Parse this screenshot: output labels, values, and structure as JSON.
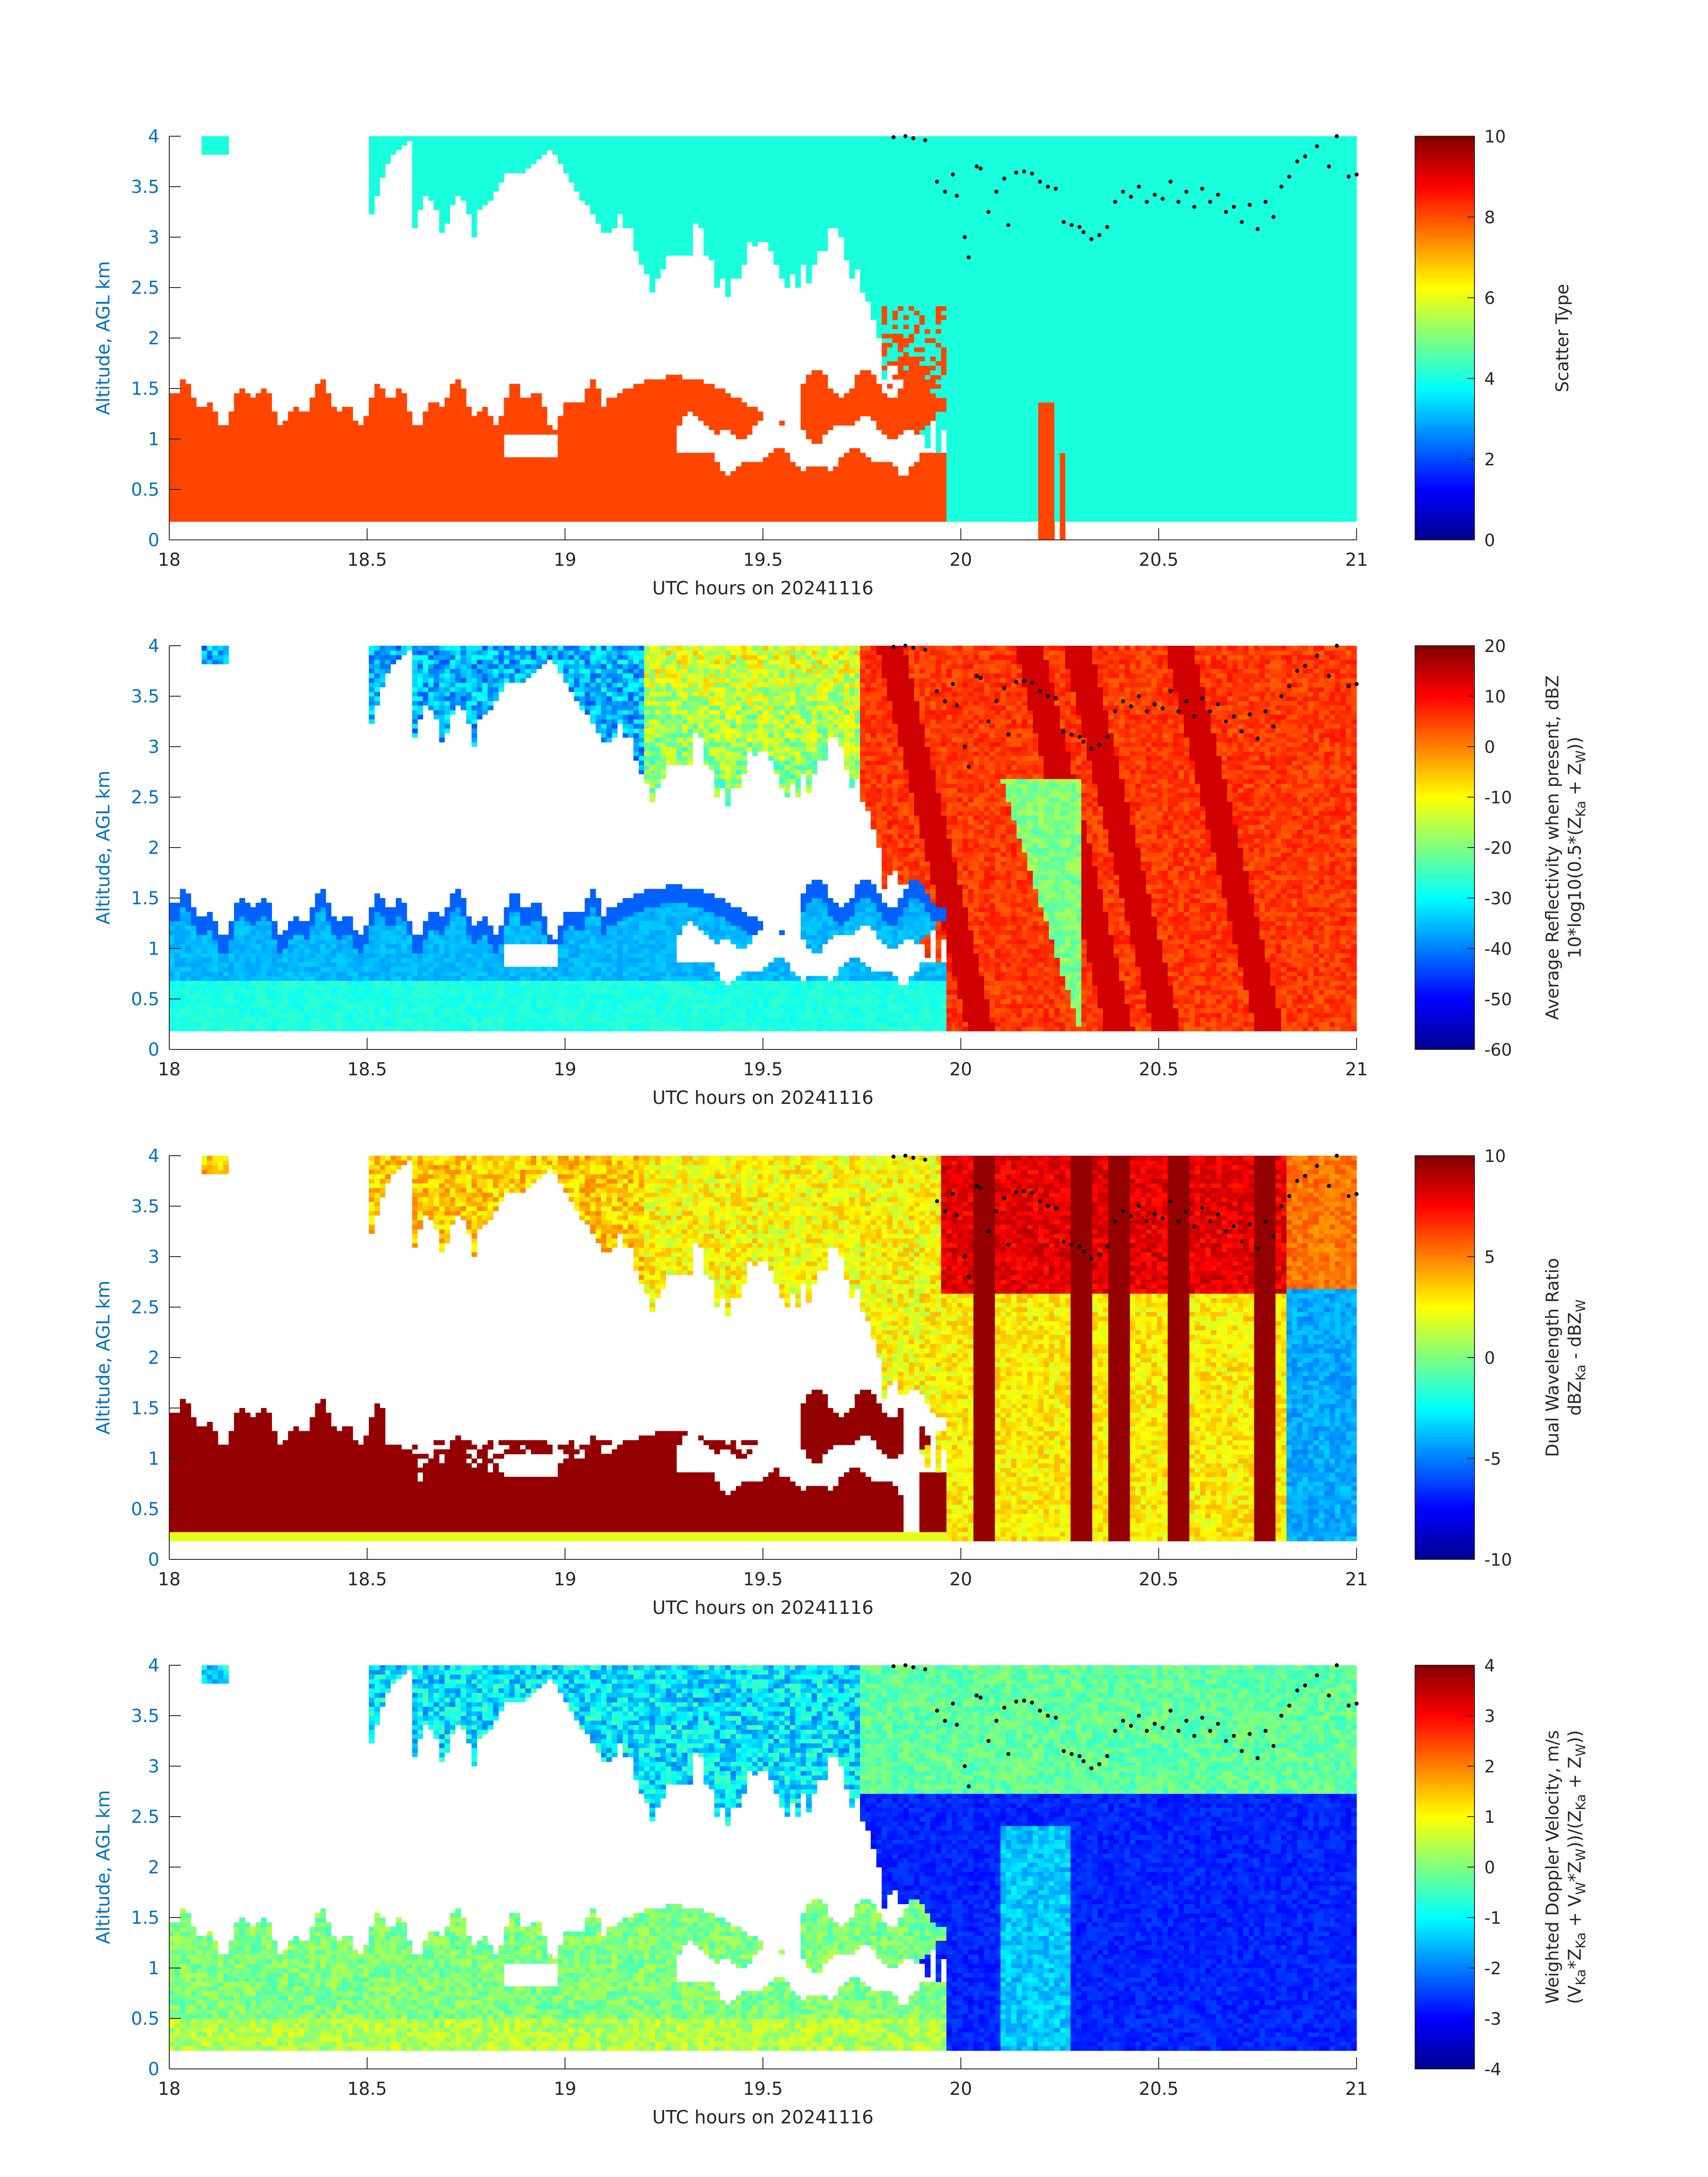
{
  "colors": {
    "axis_label": "#0072BD",
    "text": "#262626",
    "axis_line": "#262626",
    "scatter_cloud": "#19FFDD",
    "scatter_precip": "#FF4500",
    "precip_top_marker": "#000000"
  },
  "colormap": "jet",
  "chart_data": [
    {
      "type": "heatmap",
      "panel": "Scatter Type",
      "ylabel": "Altitude, AGL km",
      "xlabel": "UTC hours on 20241116",
      "xlim": [
        18,
        21
      ],
      "ylim": [
        0,
        4
      ],
      "x_ticks": [
        "18",
        "18.5",
        "19",
        "19.5",
        "20",
        "20.5",
        "21"
      ],
      "y_ticks": [
        "0",
        "0.5",
        "1",
        "1.5",
        "2",
        "2.5",
        "3",
        "3.5",
        "4"
      ],
      "colorbar": {
        "label_lines": [
          "Scatter Type"
        ],
        "ticks": [
          "0",
          "2",
          "4",
          "6",
          "8",
          "10"
        ],
        "range": [
          0,
          10
        ]
      },
      "grid": false
    },
    {
      "type": "heatmap",
      "panel": "Average Reflectivity",
      "ylabel": "Altitude, AGL km",
      "xlabel": "UTC hours on 20241116",
      "xlim": [
        18,
        21
      ],
      "ylim": [
        0,
        4
      ],
      "x_ticks": [
        "18",
        "18.5",
        "19",
        "19.5",
        "20",
        "20.5",
        "21"
      ],
      "y_ticks": [
        "0",
        "0.5",
        "1",
        "1.5",
        "2",
        "2.5",
        "3",
        "3.5",
        "4"
      ],
      "colorbar": {
        "label_lines": [
          "Average Reflectivity when present, dBZ",
          "10*log10(0.5*(Z",
          "Ka",
          " + Z",
          "W",
          "))"
        ],
        "ticks": [
          "-60",
          "-50",
          "-40",
          "-30",
          "-20",
          "-10",
          "0",
          "10",
          "20"
        ],
        "range": [
          -60,
          20
        ]
      },
      "grid": false
    },
    {
      "type": "heatmap",
      "panel": "Dual Wavelength Ratio",
      "ylabel": "Altitude, AGL km",
      "xlabel": "UTC hours on 20241116",
      "xlim": [
        18,
        21
      ],
      "ylim": [
        0,
        4
      ],
      "x_ticks": [
        "18",
        "18.5",
        "19",
        "19.5",
        "20",
        "20.5",
        "21"
      ],
      "y_ticks": [
        "0",
        "0.5",
        "1",
        "1.5",
        "2",
        "2.5",
        "3",
        "3.5",
        "4"
      ],
      "colorbar": {
        "label_lines": [
          "Dual Wavelength Ratio",
          "dBZ",
          "Ka",
          " - dBZ",
          "W"
        ],
        "ticks": [
          "-10",
          "-5",
          "0",
          "5",
          "10"
        ],
        "range": [
          -10,
          10
        ]
      },
      "grid": false
    },
    {
      "type": "heatmap",
      "panel": "Weighted Doppler Velocity",
      "ylabel": "Altitude, AGL km",
      "xlabel": "UTC hours on 20241116",
      "xlim": [
        18,
        21
      ],
      "ylim": [
        0,
        4
      ],
      "x_ticks": [
        "18",
        "18.5",
        "19",
        "19.5",
        "20",
        "20.5",
        "21"
      ],
      "y_ticks": [
        "0",
        "0.5",
        "1",
        "1.5",
        "2",
        "2.5",
        "3",
        "3.5",
        "4"
      ],
      "colorbar": {
        "label_lines": [
          "Weighted Doppler Velocity, m/s",
          "(V",
          "Ka",
          "*Z",
          "Ka",
          " + V",
          "W",
          "*Z",
          "W",
          "))/(Z",
          "Ka",
          " + Z",
          "W",
          "))"
        ],
        "ticks": [
          "-4",
          "-3",
          "-2",
          "-1",
          "0",
          "1",
          "2",
          "3",
          "4"
        ],
        "range": [
          -4,
          4
        ]
      },
      "grid": false
    }
  ],
  "precip_top_markers": {
    "x": [
      19.83,
      19.86,
      19.88,
      19.91,
      19.94,
      19.96,
      19.98,
      19.99,
      20.01,
      20.02,
      20.04,
      20.05,
      20.07,
      20.09,
      20.11,
      20.12,
      20.14,
      20.16,
      20.18,
      20.2,
      20.22,
      20.24,
      20.26,
      20.28,
      20.3,
      20.31,
      20.33,
      20.35,
      20.37,
      20.39,
      20.41,
      20.43,
      20.45,
      20.47,
      20.49,
      20.51,
      20.53,
      20.55,
      20.57,
      20.59,
      20.61,
      20.63,
      20.65,
      20.67,
      20.69,
      20.71,
      20.73,
      20.75,
      20.77,
      20.79,
      20.81,
      20.83,
      20.85,
      20.87,
      20.9,
      20.93,
      20.95,
      20.98,
      21.0
    ],
    "y": [
      3.99,
      4.0,
      3.98,
      3.96,
      3.55,
      3.45,
      3.62,
      3.41,
      3.0,
      2.8,
      3.7,
      3.68,
      3.25,
      3.45,
      3.58,
      3.12,
      3.64,
      3.65,
      3.63,
      3.55,
      3.5,
      3.48,
      3.15,
      3.12,
      3.1,
      3.05,
      2.98,
      3.02,
      3.1,
      3.35,
      3.45,
      3.4,
      3.5,
      3.35,
      3.42,
      3.38,
      3.55,
      3.35,
      3.45,
      3.3,
      3.48,
      3.35,
      3.42,
      3.25,
      3.3,
      3.15,
      3.32,
      3.08,
      3.35,
      3.2,
      3.5,
      3.6,
      3.75,
      3.8,
      3.9,
      3.7,
      4.0,
      3.6,
      3.62
    ]
  }
}
